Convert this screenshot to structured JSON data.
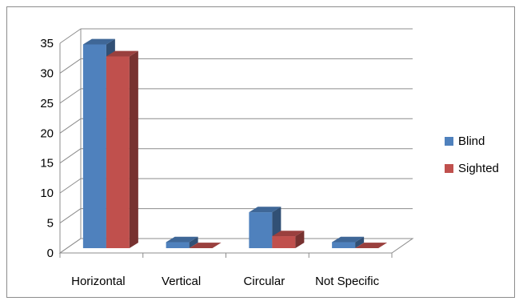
{
  "chart_data": {
    "type": "bar",
    "title": "",
    "xlabel": "",
    "ylabel": "",
    "categories": [
      "Horizontal",
      "Vertical",
      "Circular",
      "Not Specific"
    ],
    "series": [
      {
        "name": "Blind",
        "color": "#4F81BD",
        "values": [
          34,
          1,
          6,
          1
        ]
      },
      {
        "name": "Sighted",
        "color": "#C0504D",
        "values": [
          32,
          0,
          2,
          0
        ]
      }
    ],
    "ylim": [
      0,
      35
    ],
    "yticks": [
      "0",
      "5",
      "10",
      "15",
      "20",
      "25",
      "30",
      "35"
    ],
    "grid": true,
    "legend_position": "right",
    "style": "3d-clustered-column"
  }
}
